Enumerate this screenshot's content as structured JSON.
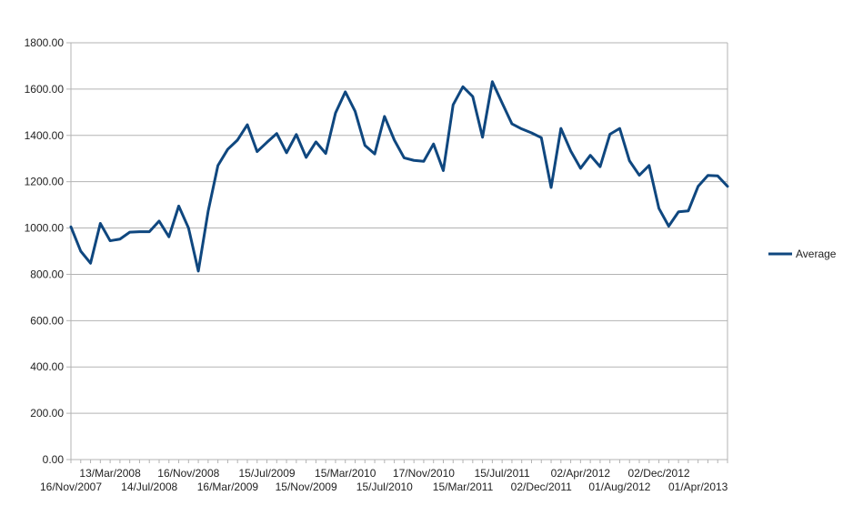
{
  "chart_data": {
    "type": "line",
    "title": "",
    "xlabel": "",
    "ylabel": "",
    "ylim": [
      0,
      1800
    ],
    "y_ticks": [
      "0.00",
      "200.00",
      "400.00",
      "600.00",
      "800.00",
      "1000.00",
      "1200.00",
      "1400.00",
      "1600.00",
      "1800.00"
    ],
    "x_tick_labels": [
      {
        "label": "16/Nov/2007",
        "index": 0,
        "row": "lower"
      },
      {
        "label": "13/Mar/2008",
        "index": 4,
        "row": "upper"
      },
      {
        "label": "14/Jul/2008",
        "index": 8,
        "row": "lower"
      },
      {
        "label": "16/Nov/2008",
        "index": 12,
        "row": "upper"
      },
      {
        "label": "16/Mar/2009",
        "index": 16,
        "row": "lower"
      },
      {
        "label": "15/Jul/2009",
        "index": 20,
        "row": "upper"
      },
      {
        "label": "15/Nov/2009",
        "index": 24,
        "row": "lower"
      },
      {
        "label": "15/Mar/2010",
        "index": 28,
        "row": "upper"
      },
      {
        "label": "15/Jul/2010",
        "index": 32,
        "row": "lower"
      },
      {
        "label": "17/Nov/2010",
        "index": 36,
        "row": "upper"
      },
      {
        "label": "15/Mar/2011",
        "index": 40,
        "row": "lower"
      },
      {
        "label": "15/Jul/2011",
        "index": 44,
        "row": "upper"
      },
      {
        "label": "02/Dec/2011",
        "index": 48,
        "row": "lower"
      },
      {
        "label": "02/Apr/2012",
        "index": 52,
        "row": "upper"
      },
      {
        "label": "01/Aug/2012",
        "index": 56,
        "row": "lower"
      },
      {
        "label": "02/Dec/2012",
        "index": 60,
        "row": "upper"
      },
      {
        "label": "01/Apr/2013",
        "index": 64,
        "row": "lower"
      }
    ],
    "grid": true,
    "legend_position": "right",
    "series": [
      {
        "name": "Average",
        "color": "#0f477f",
        "values": [
          1005,
          900,
          848,
          1020,
          945,
          952,
          982,
          984,
          984,
          1030,
          962,
          1095,
          1000,
          814,
          1072,
          1270,
          1340,
          1380,
          1446,
          1330,
          1370,
          1408,
          1325,
          1404,
          1305,
          1372,
          1322,
          1497,
          1588,
          1504,
          1357,
          1320,
          1482,
          1380,
          1303,
          1292,
          1288,
          1363,
          1248,
          1532,
          1610,
          1568,
          1392,
          1632,
          1540,
          1450,
          1428,
          1411,
          1390,
          1175,
          1430,
          1333,
          1258,
          1314,
          1265,
          1405,
          1430,
          1290,
          1228,
          1270,
          1085,
          1008,
          1070,
          1074,
          1180,
          1227,
          1225,
          1180
        ]
      }
    ]
  }
}
